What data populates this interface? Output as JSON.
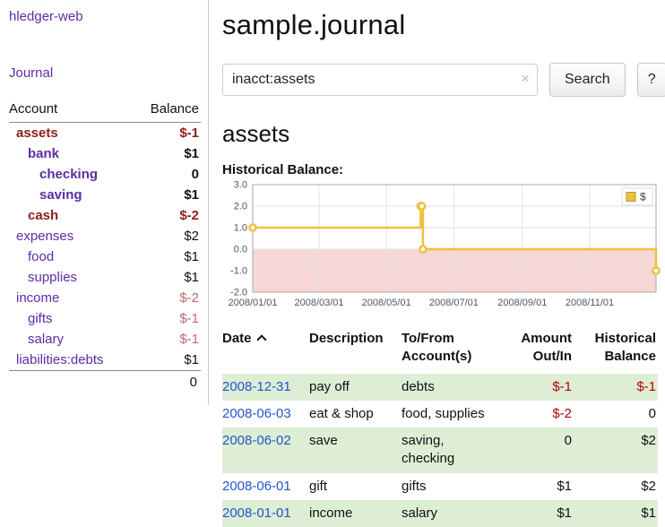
{
  "sidebar": {
    "brand": "hledger-web",
    "journal_label": "Journal",
    "columns": {
      "account": "Account",
      "balance": "Balance"
    },
    "accounts": [
      {
        "name": "assets",
        "indent": 1,
        "balance": "$-1",
        "bold": true,
        "neg": "strong"
      },
      {
        "name": "bank",
        "indent": 2,
        "balance": "$1",
        "bold": true,
        "neg": "none"
      },
      {
        "name": "checking",
        "indent": 3,
        "balance": "0",
        "bold": true,
        "neg": "none"
      },
      {
        "name": "saving",
        "indent": 3,
        "balance": "$1",
        "bold": true,
        "neg": "none"
      },
      {
        "name": "cash",
        "indent": 2,
        "balance": "$-2",
        "bold": true,
        "neg": "strong"
      },
      {
        "name": "expenses",
        "indent": 1,
        "balance": "$2",
        "bold": false,
        "neg": "none"
      },
      {
        "name": "food",
        "indent": 2,
        "balance": "$1",
        "bold": false,
        "neg": "none"
      },
      {
        "name": "supplies",
        "indent": 2,
        "balance": "$1",
        "bold": false,
        "neg": "none"
      },
      {
        "name": "income",
        "indent": 1,
        "balance": "$-2",
        "bold": false,
        "neg": "soft"
      },
      {
        "name": "gifts",
        "indent": 2,
        "balance": "$-1",
        "bold": false,
        "neg": "soft"
      },
      {
        "name": "salary",
        "indent": 2,
        "balance": "$-1",
        "bold": false,
        "neg": "soft"
      },
      {
        "name": "liabilities:debts",
        "indent": 1,
        "balance": "$1",
        "bold": false,
        "neg": "none"
      }
    ],
    "total": "0"
  },
  "main": {
    "title": "sample.journal",
    "search": {
      "value": "inacct:assets",
      "clear_icon": "×",
      "button": "Search",
      "help": "?"
    },
    "account_heading": "assets",
    "chart_label": "Historical Balance:"
  },
  "chart_data": {
    "type": "line",
    "title": "Historical Balance",
    "series": [
      {
        "name": "$",
        "color": "#edc240",
        "step": true,
        "points": [
          [
            "2008-01-01",
            1
          ],
          [
            "2008-06-01",
            2
          ],
          [
            "2008-06-02",
            2
          ],
          [
            "2008-06-03",
            0
          ],
          [
            "2008-12-31",
            -1
          ]
        ]
      }
    ],
    "x_range": [
      "2008-01-01",
      "2008-12-31"
    ],
    "x_ticks": [
      "2008/01/01",
      "2008/03/01",
      "2008/05/01",
      "2008/07/01",
      "2008/09/01",
      "2008/11/01"
    ],
    "y_ticks": [
      3.0,
      2.0,
      1.0,
      0.0,
      -1.0,
      -2.0
    ],
    "ylim": [
      -2,
      3
    ],
    "grid": true,
    "negative_band_color": "#f8d7d7",
    "legend": {
      "label": "$",
      "position": "top-right"
    }
  },
  "register": {
    "headers": [
      "Date",
      "Description",
      "To/From Account(s)",
      "Amount Out/In",
      "Historical Balance"
    ],
    "sort": {
      "column": "Date",
      "icon": "up-caret"
    },
    "rows": [
      {
        "date": "2008-12-31",
        "description": "pay off",
        "accounts": "debts",
        "amount": "$-1",
        "balance": "$-1",
        "amount_neg": true,
        "balance_neg": true,
        "shaded": true
      },
      {
        "date": "2008-06-03",
        "description": "eat & shop",
        "accounts": "food, supplies",
        "amount": "$-2",
        "balance": "0",
        "amount_neg": true,
        "balance_neg": false,
        "shaded": false
      },
      {
        "date": "2008-06-02",
        "description": "save",
        "accounts": "saving, checking",
        "amount": "0",
        "balance": "$2",
        "amount_neg": false,
        "balance_neg": false,
        "shaded": true
      },
      {
        "date": "2008-06-01",
        "description": "gift",
        "accounts": "gifts",
        "amount": "$1",
        "balance": "$2",
        "amount_neg": false,
        "balance_neg": false,
        "shaded": false
      },
      {
        "date": "2008-01-01",
        "description": "income",
        "accounts": "salary",
        "amount": "$1",
        "balance": "$1",
        "amount_neg": false,
        "balance_neg": false,
        "shaded": true
      }
    ]
  },
  "colors": {
    "link_purple": "#5e2ca5",
    "negative_strong": "#8f1d1d",
    "negative_soft": "#bf6a6a",
    "negative_table": "#b30000",
    "date_link_blue": "#2255cc",
    "row_stripe_green": "#ddeed5",
    "chart_line_gold": "#edc240",
    "chart_negative_band": "#f8d7d7"
  }
}
